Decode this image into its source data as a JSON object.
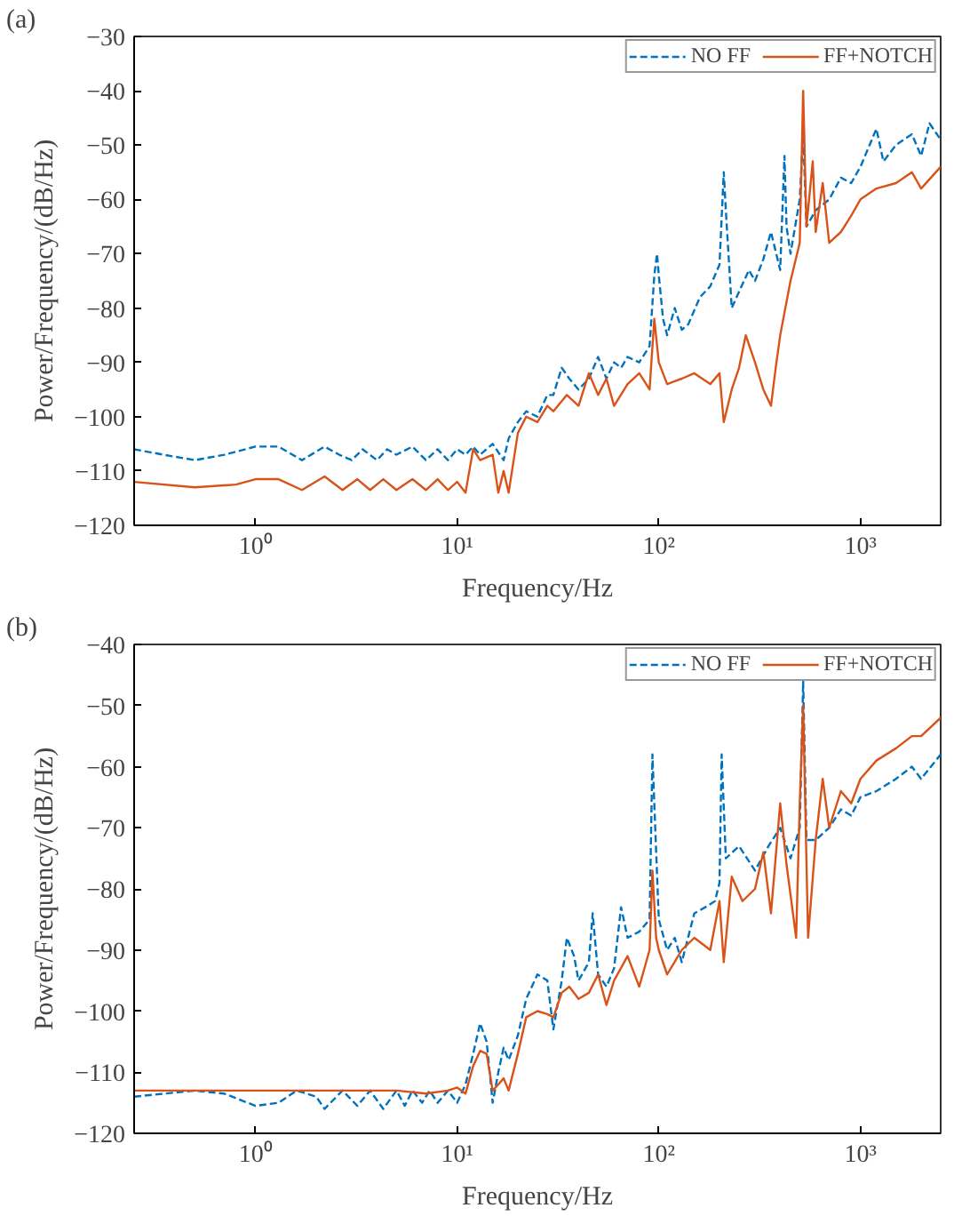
{
  "chart_data": [
    {
      "type": "line",
      "annotations": [
        "(a)"
      ],
      "xlabel": "Frequency/Hz",
      "ylabel": "Power/Frequency/(dB/Hz)",
      "log": "x",
      "xlim": [
        0.25,
        2500
      ],
      "xticks": [
        {
          "value": 1,
          "label": "10⁰"
        },
        {
          "value": 10,
          "label": "10¹"
        },
        {
          "value": 100,
          "label": "10²"
        },
        {
          "value": 1000,
          "label": "10³"
        }
      ],
      "ylim": [
        -120,
        -30
      ],
      "yticks": [
        -120,
        -110,
        -100,
        -90,
        -80,
        -70,
        -60,
        -50,
        -40,
        -30
      ],
      "grid": false,
      "legend": "top right",
      "series": [
        {
          "name": "NO FF",
          "color": "#0072bd",
          "line_style": "dashed",
          "x": [
            0.25,
            0.35,
            0.5,
            0.7,
            1.0,
            1.3,
            1.7,
            2.2,
            2.6,
            3,
            3.4,
            4,
            4.5,
            5,
            6,
            7,
            8,
            9,
            10,
            11,
            12,
            13,
            15,
            17,
            18,
            20,
            22,
            25,
            28,
            30,
            33,
            36,
            40,
            45,
            50,
            55,
            60,
            65,
            70,
            80,
            90,
            95,
            98,
            100,
            105,
            110,
            120,
            130,
            140,
            160,
            180,
            200,
            210,
            215,
            230,
            250,
            280,
            300,
            330,
            360,
            400,
            420,
            430,
            450,
            500,
            520,
            540,
            600,
            700,
            800,
            900,
            1000,
            1200,
            1300,
            1500,
            1800,
            2000,
            2200,
            2500
          ],
          "values": [
            -106,
            -107,
            -108,
            -107,
            -105.5,
            -105.5,
            -108,
            -105.5,
            -107,
            -108,
            -106,
            -108,
            -106,
            -107,
            -105.5,
            -108,
            -106,
            -108,
            -106,
            -107,
            -105.5,
            -107,
            -105,
            -108,
            -104,
            -101,
            -99,
            -100,
            -96,
            -96,
            -91,
            -93,
            -95,
            -93,
            -89,
            -93,
            -90,
            -91,
            -89,
            -90,
            -87,
            -74,
            -70,
            -74,
            -82,
            -85,
            -80,
            -84,
            -83,
            -78,
            -76,
            -72,
            -55,
            -62,
            -80,
            -77,
            -73,
            -75,
            -71,
            -66,
            -73,
            -52,
            -65,
            -70,
            -60,
            -48,
            -65,
            -62,
            -60,
            -56,
            -57,
            -54,
            -47,
            -53,
            -50,
            -48,
            -52,
            -46,
            -49
          ]
        },
        {
          "name": "FF+NOTCH",
          "color": "#d95319",
          "line_style": "solid",
          "x": [
            0.25,
            0.5,
            0.8,
            1,
            1.3,
            1.7,
            2.2,
            2.7,
            3.2,
            3.7,
            4.3,
            5,
            6,
            7,
            8,
            9,
            10,
            11,
            12,
            13,
            15,
            16,
            17,
            18,
            20,
            22,
            25,
            28,
            30,
            35,
            40,
            45,
            50,
            55,
            60,
            70,
            80,
            90,
            95,
            100,
            110,
            130,
            150,
            180,
            200,
            210,
            230,
            250,
            270,
            300,
            330,
            360,
            380,
            400,
            450,
            500,
            520,
            540,
            580,
            600,
            650,
            700,
            800,
            900,
            1000,
            1200,
            1500,
            1800,
            2000,
            2500
          ],
          "values": [
            -112,
            -113,
            -112.5,
            -111.5,
            -111.5,
            -113.5,
            -111,
            -113.5,
            -111.5,
            -113.5,
            -111.5,
            -113.5,
            -111.5,
            -113.5,
            -111.5,
            -113.5,
            -112,
            -114,
            -106,
            -108,
            -107,
            -114,
            -110,
            -114,
            -103,
            -100,
            -101,
            -98,
            -99,
            -96,
            -98,
            -92,
            -96,
            -93,
            -98,
            -94,
            -92,
            -95,
            -82,
            -90,
            -94,
            -93,
            -92,
            -94,
            -92,
            -101,
            -95,
            -91,
            -85,
            -90,
            -95,
            -98,
            -91,
            -85,
            -75,
            -68,
            -40,
            -65,
            -53,
            -66,
            -57,
            -68,
            -66,
            -63,
            -60,
            -58,
            -57,
            -55,
            -58,
            -54
          ]
        }
      ]
    },
    {
      "type": "line",
      "annotations": [
        "(b)"
      ],
      "xlabel": "Frequency/Hz",
      "ylabel": "Power/Frequency/(dB/Hz)",
      "log": "x",
      "xlim": [
        0.25,
        2500
      ],
      "xticks": [
        {
          "value": 1,
          "label": "10⁰"
        },
        {
          "value": 10,
          "label": "10¹"
        },
        {
          "value": 100,
          "label": "10²"
        },
        {
          "value": 1000,
          "label": "10³"
        }
      ],
      "ylim": [
        -120,
        -40
      ],
      "yticks": [
        -120,
        -110,
        -100,
        -90,
        -80,
        -70,
        -60,
        -50,
        -40
      ],
      "grid": false,
      "legend": "top right",
      "series": [
        {
          "name": "NO FF",
          "color": "#0072bd",
          "line_style": "dashed",
          "x": [
            0.25,
            0.5,
            0.7,
            1,
            1.3,
            1.6,
            2,
            2.2,
            2.7,
            3.2,
            3.7,
            4.3,
            5,
            5.5,
            6,
            6.7,
            7.3,
            8,
            9,
            10,
            11,
            12,
            13,
            14,
            15,
            16,
            17,
            18,
            20,
            22,
            25,
            28,
            30,
            33,
            35,
            38,
            40,
            45,
            47,
            50,
            55,
            60,
            65,
            70,
            80,
            90,
            93,
            96,
            100,
            110,
            120,
            130,
            150,
            170,
            190,
            200,
            205,
            215,
            250,
            300,
            350,
            400,
            450,
            500,
            520,
            540,
            600,
            700,
            800,
            900,
            1000,
            1200,
            1500,
            1800,
            2000,
            2500
          ],
          "values": [
            -114,
            -113,
            -113.5,
            -115.5,
            -115,
            -113,
            -114,
            -116,
            -113,
            -115.5,
            -113,
            -116,
            -113,
            -115.5,
            -113,
            -115,
            -113,
            -115,
            -113,
            -115,
            -112,
            -107,
            -102,
            -105,
            -115,
            -110,
            -106,
            -108,
            -104,
            -98,
            -94,
            -95,
            -103,
            -95,
            -88,
            -91,
            -95,
            -92,
            -84,
            -94,
            -96,
            -93,
            -83,
            -88,
            -87,
            -85,
            -58,
            -70,
            -85,
            -90,
            -88,
            -92,
            -84,
            -83,
            -82,
            -79,
            -58,
            -75,
            -73,
            -77,
            -73,
            -70,
            -75,
            -70,
            -46,
            -72,
            -72,
            -70,
            -67,
            -68,
            -65,
            -64,
            -62,
            -60,
            -62,
            -58
          ]
        },
        {
          "name": "FF+NOTCH",
          "color": "#d95319",
          "line_style": "solid",
          "x": [
            0.25,
            0.5,
            1,
            2,
            3,
            5,
            7,
            9,
            10,
            11,
            12,
            13,
            14,
            15,
            16,
            17,
            18,
            20,
            22,
            25,
            28,
            30,
            33,
            36,
            40,
            45,
            50,
            55,
            60,
            70,
            80,
            90,
            93,
            97,
            100,
            110,
            130,
            150,
            180,
            200,
            210,
            230,
            260,
            300,
            330,
            360,
            400,
            430,
            480,
            500,
            520,
            550,
            600,
            650,
            700,
            800,
            900,
            1000,
            1200,
            1500,
            1800,
            2000,
            2500
          ],
          "values": [
            -113,
            -113,
            -113,
            -113,
            -113,
            -113,
            -113.5,
            -113,
            -112.5,
            -113.5,
            -109,
            -106.5,
            -107,
            -113,
            -112,
            -111,
            -113,
            -107,
            -101,
            -100,
            -100.5,
            -101,
            -97,
            -96,
            -98,
            -97,
            -94,
            -99,
            -95,
            -91,
            -96,
            -90,
            -77,
            -88,
            -90,
            -94,
            -90,
            -88,
            -90,
            -82,
            -92,
            -78,
            -82,
            -80,
            -74,
            -84,
            -66,
            -76,
            -88,
            -66,
            -50,
            -88,
            -72,
            -62,
            -70,
            -64,
            -66,
            -62,
            -59,
            -57,
            -55,
            -55,
            -52
          ]
        }
      ]
    }
  ]
}
